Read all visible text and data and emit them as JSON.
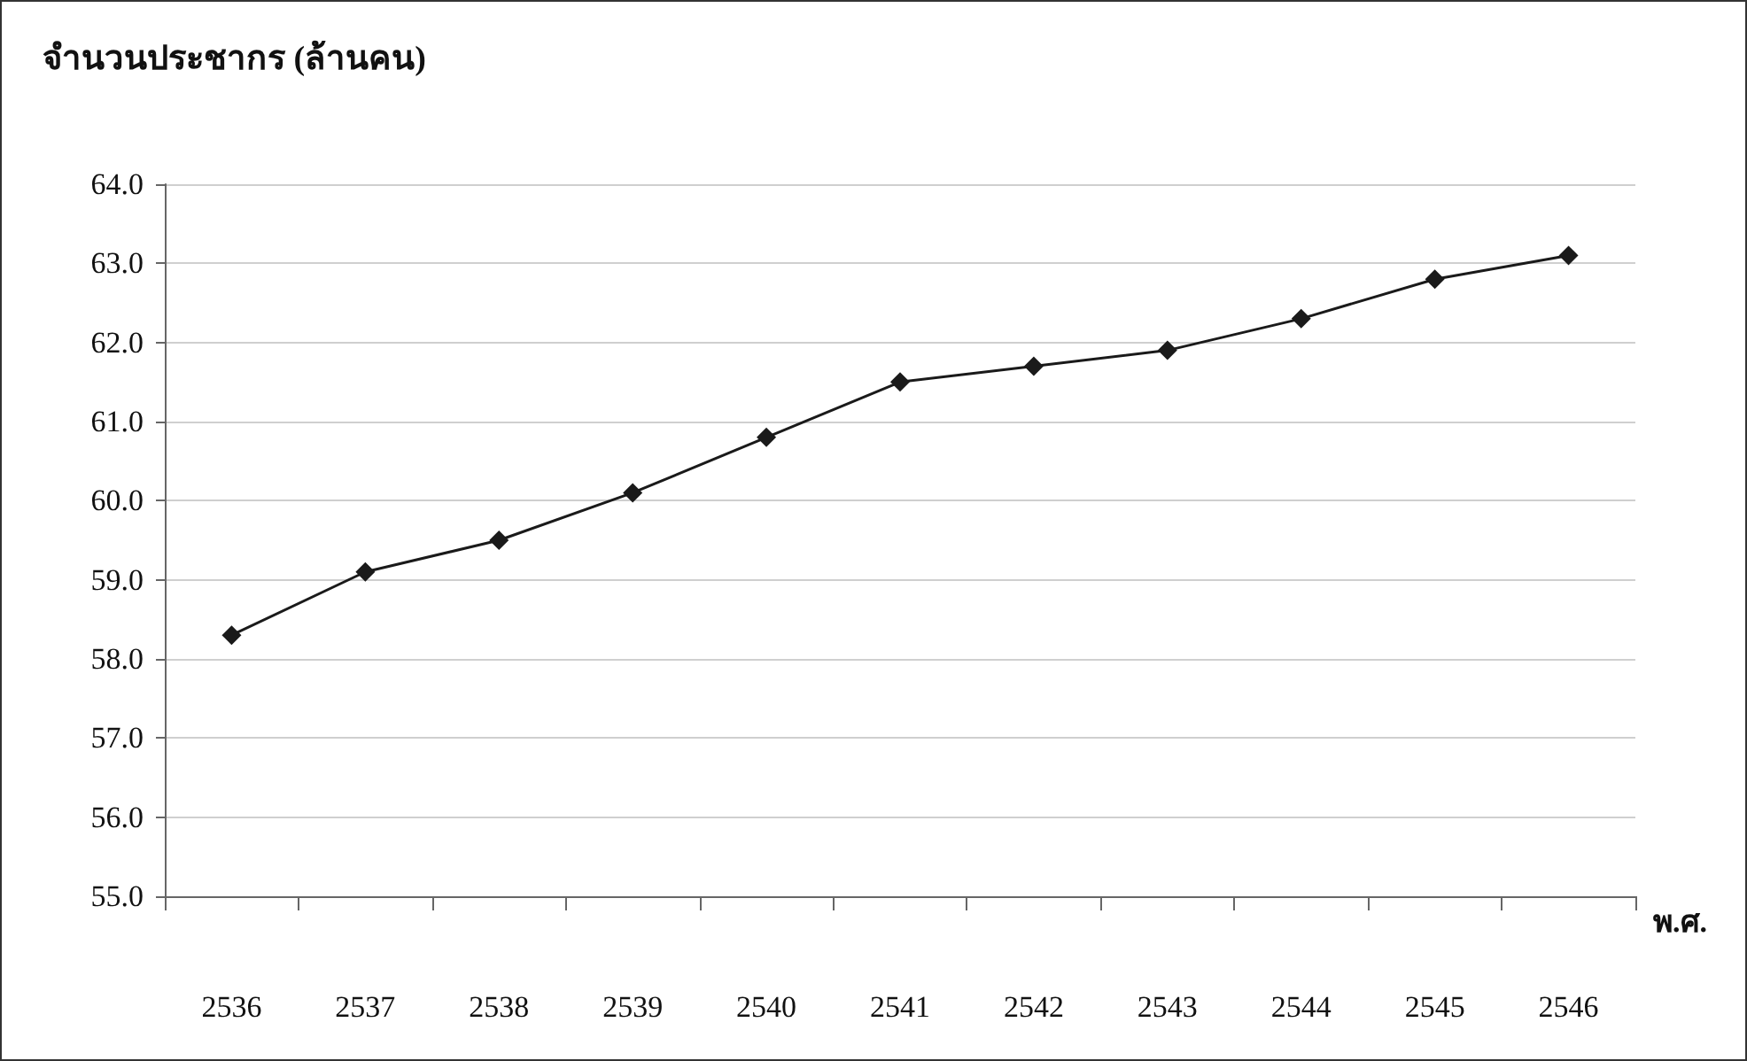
{
  "chart_data": {
    "type": "line",
    "ylabel": "จำนวนประชากร (ล้านคน)",
    "xlabel": "พ.ศ.",
    "categories": [
      "2536",
      "2537",
      "2538",
      "2539",
      "2540",
      "2541",
      "2542",
      "2543",
      "2544",
      "2545",
      "2546"
    ],
    "series": [
      {
        "color": "#1a1a1a",
        "values": [
          58.3,
          59.1,
          59.5,
          60.1,
          60.8,
          61.5,
          61.7,
          61.9,
          62.3,
          62.8,
          63.1
        ]
      }
    ],
    "ylim": [
      55,
      64
    ],
    "yticks": [
      {
        "value": 55,
        "label": "55.0"
      },
      {
        "value": 56,
        "label": "56.0"
      },
      {
        "value": 57,
        "label": "57.0"
      },
      {
        "value": 58,
        "label": "58.0"
      },
      {
        "value": 59,
        "label": "59.0"
      },
      {
        "value": 60,
        "label": "60.0"
      },
      {
        "value": 61,
        "label": "61.0"
      },
      {
        "value": 62,
        "label": "62.0"
      },
      {
        "value": 63,
        "label": "63.0"
      },
      {
        "value": 64,
        "label": "64.0"
      }
    ],
    "grid": "y",
    "marker": "diamond",
    "line_style": "solid"
  }
}
